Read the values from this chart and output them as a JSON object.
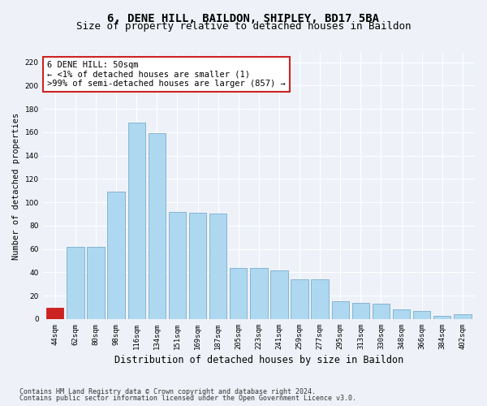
{
  "title": "6, DENE HILL, BAILDON, SHIPLEY, BD17 5BA",
  "subtitle": "Size of property relative to detached houses in Baildon",
  "xlabel": "Distribution of detached houses by size in Baildon",
  "ylabel": "Number of detached properties",
  "categories": [
    "44sqm",
    "62sqm",
    "80sqm",
    "98sqm",
    "116sqm",
    "134sqm",
    "151sqm",
    "169sqm",
    "187sqm",
    "205sqm",
    "223sqm",
    "241sqm",
    "259sqm",
    "277sqm",
    "295sqm",
    "313sqm",
    "330sqm",
    "348sqm",
    "366sqm",
    "384sqm",
    "402sqm"
  ],
  "values": [
    10,
    62,
    62,
    109,
    168,
    159,
    92,
    91,
    90,
    44,
    44,
    42,
    34,
    34,
    15,
    14,
    13,
    8,
    7,
    3,
    4
  ],
  "highlight_index": 0,
  "bar_color": "#add8f0",
  "bar_edge_color": "#7aadd0",
  "highlight_bar_color": "#cc2222",
  "highlight_bar_edge_color": "#cc2222",
  "bg_color": "#eef2f8",
  "grid_color": "#ffffff",
  "annotation_text": "6 DENE HILL: 50sqm\n← <1% of detached houses are smaller (1)\n>99% of semi-detached houses are larger (857) →",
  "annotation_box_color": "#ffffff",
  "annotation_box_edge_color": "#cc2222",
  "ylim": [
    0,
    228
  ],
  "yticks": [
    0,
    20,
    40,
    60,
    80,
    100,
    120,
    140,
    160,
    180,
    200,
    220
  ],
  "footer1": "Contains HM Land Registry data © Crown copyright and database right 2024.",
  "footer2": "Contains public sector information licensed under the Open Government Licence v3.0.",
  "title_fontsize": 10,
  "subtitle_fontsize": 9,
  "xlabel_fontsize": 8.5,
  "ylabel_fontsize": 7.5,
  "tick_fontsize": 6.5,
  "annotation_fontsize": 7.5,
  "footer_fontsize": 6
}
